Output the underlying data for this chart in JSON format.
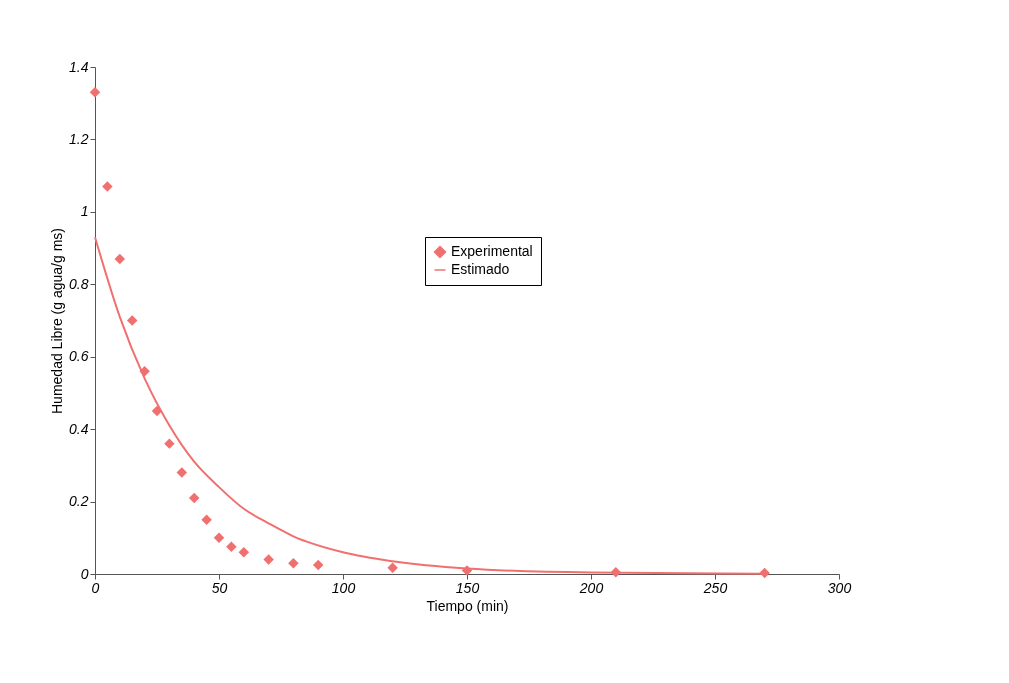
{
  "chart_data": {
    "type": "scatter",
    "xlabel": "Tiempo (min)",
    "ylabel": "Humedad Libre (g agua/g ms)",
    "xlim": [
      0,
      300
    ],
    "ylim": [
      0,
      1.4
    ],
    "xticks": [
      0,
      50,
      100,
      150,
      200,
      250,
      300
    ],
    "yticks": [
      0,
      0.2,
      0.4,
      0.6,
      0.8,
      1,
      1.2,
      1.4
    ],
    "grid": false,
    "legend": "top",
    "series": [
      {
        "name": "Experimental",
        "marker": "diamond",
        "color": "#f07070",
        "x": [
          0,
          5,
          10,
          15,
          20,
          25,
          30,
          35,
          40,
          45,
          50,
          55,
          60,
          70,
          80,
          90,
          120,
          150,
          210,
          270
        ],
        "values": [
          1.33,
          1.07,
          0.87,
          0.7,
          0.56,
          0.45,
          0.36,
          0.28,
          0.21,
          0.15,
          0.1,
          0.075,
          0.06,
          0.04,
          0.03,
          0.025,
          0.017,
          0.01,
          0.005,
          0.003
        ]
      },
      {
        "name": "Estimado",
        "type": "line",
        "marker": "none",
        "line_style": "solid",
        "color": "#f07070",
        "x": [
          0,
          10,
          20,
          30,
          40,
          50,
          60,
          70,
          80,
          100,
          120,
          150,
          200,
          270
        ],
        "values": [
          0.93,
          0.71,
          0.54,
          0.41,
          0.31,
          0.24,
          0.18,
          0.14,
          0.104,
          0.06,
          0.035,
          0.015,
          0.004,
          0.001
        ]
      }
    ]
  }
}
